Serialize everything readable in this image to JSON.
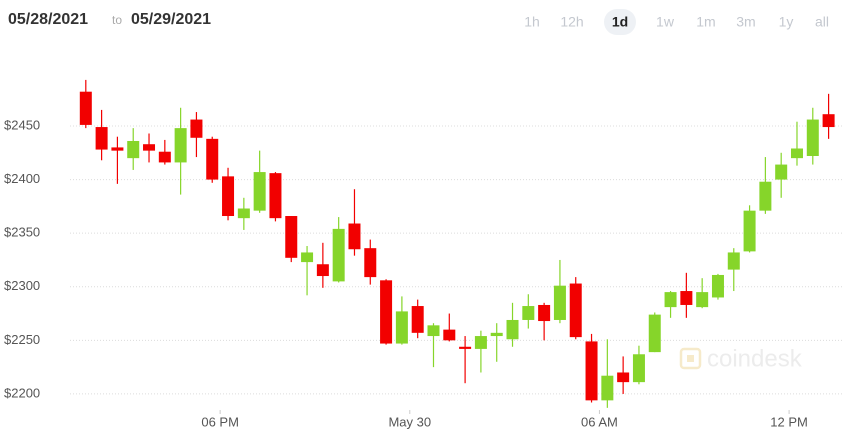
{
  "header": {
    "date_from": "05/28/2021",
    "separator": "to",
    "date_to": "05/29/2021",
    "ranges": [
      "1h",
      "12h",
      "1d",
      "1w",
      "1m",
      "3m",
      "1y",
      "all"
    ],
    "selected_range_index": 2
  },
  "watermark": "coindesk",
  "chart_data": {
    "type": "candlestick",
    "x": [
      -10.25,
      -9.75,
      -9.25,
      -8.75,
      -8.25,
      -7.75,
      -7.25,
      -6.75,
      -6.25,
      -5.75,
      -5.25,
      -4.75,
      -4.25,
      -3.75,
      -3.25,
      -2.75,
      -2.25,
      -1.75,
      -1.25,
      -0.75,
      -0.25,
      0.25,
      0.75,
      1.25,
      1.75,
      2.25,
      2.75,
      3.25,
      3.75,
      4.25,
      4.75,
      5.25,
      5.75,
      6.25,
      6.75,
      7.25,
      7.75,
      8.25,
      8.75,
      9.25,
      9.75,
      10.25,
      10.75,
      11.25,
      11.75,
      12.25,
      12.75,
      13.25
    ],
    "open": [
      2482,
      2449,
      2430,
      2420,
      2433,
      2426,
      2416,
      2456,
      2438,
      2403,
      2364,
      2371,
      2406,
      2366,
      2323,
      2321,
      2305,
      2359,
      2336,
      2306,
      2247,
      2282,
      2254,
      2260,
      2244,
      2242,
      2254,
      2251,
      2269,
      2283,
      2269,
      2303,
      2249,
      2194,
      2220,
      2211,
      2239,
      2281,
      2296,
      2281,
      2290,
      2316,
      2333,
      2371,
      2400,
      2420,
      2422,
      2461
    ],
    "high": [
      2493,
      2465,
      2440,
      2448,
      2443,
      2437,
      2467,
      2463,
      2440,
      2411,
      2383,
      2427,
      2407,
      2366,
      2338,
      2341,
      2365,
      2391,
      2344,
      2307,
      2291,
      2288,
      2266,
      2275,
      2254,
      2259,
      2266,
      2285,
      2293,
      2285,
      2325,
      2309,
      2256,
      2251,
      2235,
      2245,
      2276,
      2296,
      2313,
      2308,
      2312,
      2336,
      2376,
      2421,
      2425,
      2454,
      2467,
      2480
    ],
    "low": [
      2448,
      2418,
      2396,
      2409,
      2416,
      2414,
      2386,
      2421,
      2397,
      2362,
      2353,
      2369,
      2361,
      2323,
      2292,
      2299,
      2304,
      2329,
      2302,
      2246,
      2246,
      2252,
      2225,
      2249,
      2210,
      2220,
      2230,
      2244,
      2261,
      2250,
      2266,
      2251,
      2192,
      2187,
      2200,
      2209,
      2239,
      2271,
      2271,
      2280,
      2288,
      2296,
      2332,
      2368,
      2383,
      2413,
      2414,
      2438
    ],
    "close": [
      2451,
      2428,
      2427,
      2436,
      2427,
      2416,
      2448,
      2439,
      2400,
      2366,
      2373,
      2407,
      2364,
      2327,
      2332,
      2310,
      2354,
      2335,
      2309,
      2247,
      2277,
      2257,
      2264,
      2250,
      2242,
      2254,
      2257,
      2269,
      2282,
      2268,
      2301,
      2253,
      2194,
      2217,
      2211,
      2237,
      2274,
      2295,
      2283,
      2295,
      2311,
      2332,
      2371,
      2398,
      2414,
      2429,
      2456,
      2449
    ],
    "up_color": "#86d52a",
    "down_color": "#f20000",
    "xlim": [
      -10.75,
      13.5
    ],
    "xticks": [
      {
        "value": -6,
        "label": "06 PM"
      },
      {
        "value": 0,
        "label": "May 30"
      },
      {
        "value": 6,
        "label": "06 AM"
      },
      {
        "value": 12,
        "label": "12 PM"
      }
    ],
    "ylim": [
      2185,
      2500
    ],
    "yticks": [
      {
        "value": 2200,
        "label": "$2200"
      },
      {
        "value": 2250,
        "label": "$2250"
      },
      {
        "value": 2300,
        "label": "$2300"
      },
      {
        "value": 2350,
        "label": "$2350"
      },
      {
        "value": 2400,
        "label": "$2400"
      },
      {
        "value": 2450,
        "label": "$2450"
      }
    ],
    "grid": true
  }
}
